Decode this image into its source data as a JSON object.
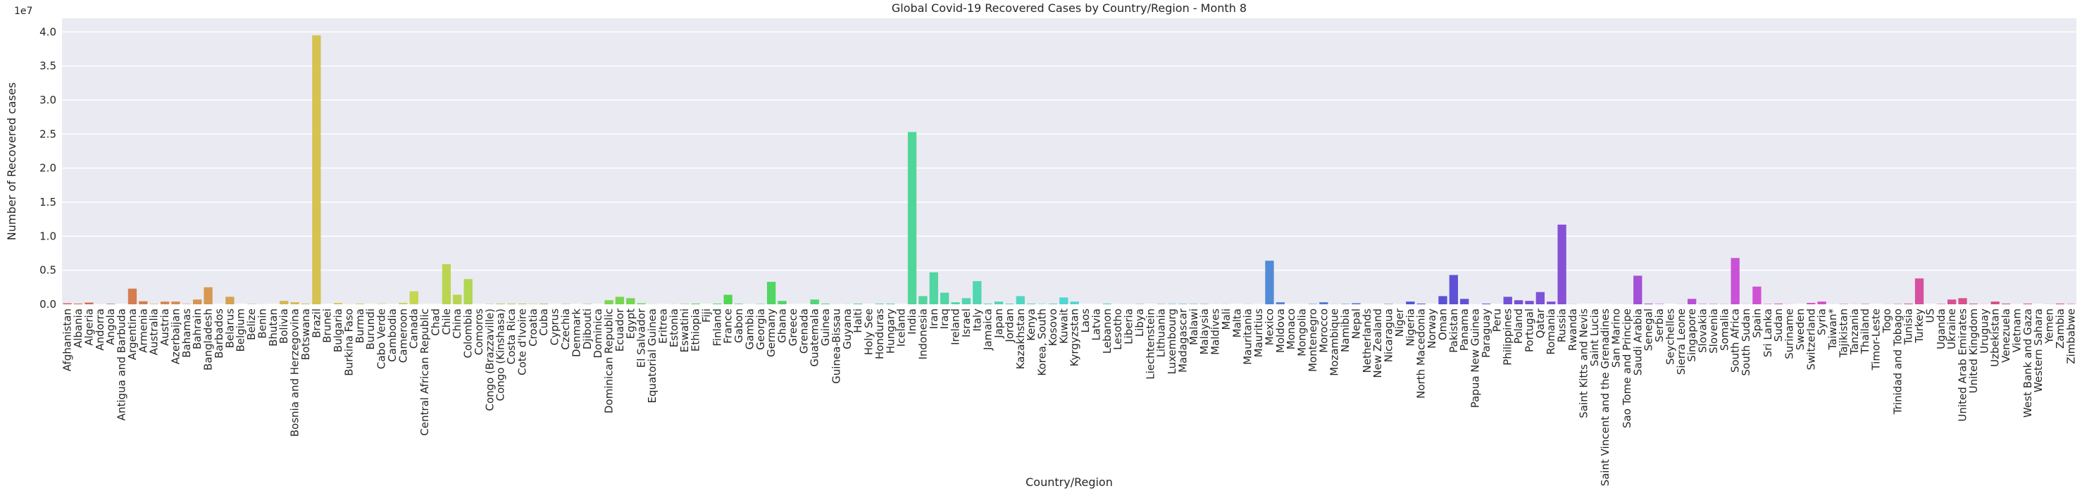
{
  "chart_data": {
    "type": "bar",
    "title": "Global Covid-19 Recovered Cases by Country/Region - Month 8",
    "x_label": "Country/Region",
    "y_label": "Number of Recovered cases",
    "y_offset": "1e7",
    "palette": "husl",
    "grid": true,
    "ylim": [
      0,
      42000000
    ],
    "yticks": [
      {
        "value": 0,
        "label": "0.0"
      },
      {
        "value": 5000000,
        "label": "0.5"
      },
      {
        "value": 10000000,
        "label": "1.0"
      },
      {
        "value": 15000000,
        "label": "1.5"
      },
      {
        "value": 20000000,
        "label": "2.0"
      },
      {
        "value": 25000000,
        "label": "2.5"
      },
      {
        "value": 30000000,
        "label": "3.0"
      },
      {
        "value": 35000000,
        "label": "3.5"
      },
      {
        "value": 40000000,
        "label": "4.0"
      }
    ],
    "categories": [
      "Afghanistan",
      "Albania",
      "Algeria",
      "Andorra",
      "Angola",
      "Antigua and Barbuda",
      "Argentina",
      "Armenia",
      "Australia",
      "Austria",
      "Azerbaijan",
      "Bahamas",
      "Bahrain",
      "Bangladesh",
      "Barbados",
      "Belarus",
      "Belgium",
      "Belize",
      "Benin",
      "Bhutan",
      "Bolivia",
      "Bosnia and Herzegovina",
      "Botswana",
      "Brazil",
      "Brunei",
      "Bulgaria",
      "Burkina Faso",
      "Burma",
      "Burundi",
      "Cabo Verde",
      "Cambodia",
      "Cameroon",
      "Canada",
      "Central African Republic",
      "Chad",
      "Chile",
      "China",
      "Colombia",
      "Comoros",
      "Congo (Brazzaville)",
      "Congo (Kinshasa)",
      "Costa Rica",
      "Cote d'Ivoire",
      "Croatia",
      "Cuba",
      "Cyprus",
      "Czechia",
      "Denmark",
      "Djibouti",
      "Dominica",
      "Dominican Republic",
      "Ecuador",
      "Egypt",
      "El Salvador",
      "Equatorial Guinea",
      "Eritrea",
      "Estonia",
      "Eswatini",
      "Ethiopia",
      "Fiji",
      "Finland",
      "France",
      "Gabon",
      "Gambia",
      "Georgia",
      "Germany",
      "Ghana",
      "Greece",
      "Grenada",
      "Guatemala",
      "Guinea",
      "Guinea-Bissau",
      "Guyana",
      "Haiti",
      "Holy See",
      "Honduras",
      "Hungary",
      "Iceland",
      "India",
      "Indonesia",
      "Iran",
      "Iraq",
      "Ireland",
      "Israel",
      "Italy",
      "Jamaica",
      "Japan",
      "Jordan",
      "Kazakhstan",
      "Kenya",
      "Korea, South",
      "Kosovo",
      "Kuwait",
      "Kyrgyzstan",
      "Laos",
      "Latvia",
      "Lebanon",
      "Lesotho",
      "Liberia",
      "Libya",
      "Liechtenstein",
      "Lithuania",
      "Luxembourg",
      "Madagascar",
      "Malawi",
      "Malaysia",
      "Maldives",
      "Mali",
      "Malta",
      "Mauritania",
      "Mauritius",
      "Mexico",
      "Moldova",
      "Monaco",
      "Mongolia",
      "Montenegro",
      "Morocco",
      "Mozambique",
      "Namibia",
      "Nepal",
      "Netherlands",
      "New Zealand",
      "Nicaragua",
      "Niger",
      "Nigeria",
      "North Macedonia",
      "Norway",
      "Oman",
      "Pakistan",
      "Panama",
      "Papua New Guinea",
      "Paraguay",
      "Peru",
      "Philippines",
      "Poland",
      "Portugal",
      "Qatar",
      "Romania",
      "Russia",
      "Rwanda",
      "Saint Kitts and Nevis",
      "Saint Lucia",
      "Saint Vincent and the Grenadines",
      "San Marino",
      "Sao Tome and Principe",
      "Saudi Arabia",
      "Senegal",
      "Serbia",
      "Seychelles",
      "Sierra Leone",
      "Singapore",
      "Slovakia",
      "Slovenia",
      "Somalia",
      "South Africa",
      "South Sudan",
      "Spain",
      "Sri Lanka",
      "Sudan",
      "Suriname",
      "Sweden",
      "Switzerland",
      "Syria",
      "Taiwan*",
      "Tajikistan",
      "Tanzania",
      "Thailand",
      "Timor-Leste",
      "Togo",
      "Trinidad and Tobago",
      "Tunisia",
      "Turkey",
      "US",
      "Uganda",
      "Ukraine",
      "United Arab Emirates",
      "United Kingdom",
      "Uruguay",
      "Uzbekistan",
      "Venezuela",
      "Vietnam",
      "West Bank and Gaza",
      "Western Sahara",
      "Yemen",
      "Zambia",
      "Zimbabwe"
    ],
    "values": [
      150000,
      100000,
      250000,
      10000,
      80000,
      1000,
      2300000,
      450000,
      50000,
      400000,
      400000,
      50000,
      700000,
      2500000,
      5000,
      1100000,
      0,
      50000,
      20000,
      5000,
      500000,
      300000,
      100000,
      39500000,
      1000,
      200000,
      30000,
      100000,
      5000,
      60000,
      5000,
      200000,
      1900000,
      10000,
      10000,
      5900000,
      1400000,
      3700000,
      5000,
      50000,
      100000,
      100000,
      100000,
      50000,
      100000,
      10000,
      50000,
      0,
      60000,
      1000,
      600000,
      1100000,
      900000,
      150000,
      20000,
      5000,
      20000,
      50000,
      100000,
      1000,
      100000,
      1400000,
      80000,
      10000,
      50000,
      3300000,
      500000,
      10000,
      1000,
      700000,
      100000,
      20000,
      20000,
      100000,
      0,
      100000,
      100000,
      5000,
      25300000,
      1200000,
      4700000,
      1700000,
      300000,
      900000,
      3400000,
      100000,
      400000,
      100000,
      1200000,
      100000,
      50000,
      100000,
      1000000,
      400000,
      1000,
      10000,
      100000,
      10000,
      20000,
      50000,
      1000,
      50000,
      50000,
      60000,
      50000,
      50000,
      10000,
      20000,
      5000,
      20000,
      5000,
      6400000,
      300000,
      1000,
      5000,
      50000,
      300000,
      20000,
      50000,
      150000,
      0,
      5000,
      50000,
      10000,
      400000,
      100000,
      0,
      1200000,
      4300000,
      800000,
      10000,
      100000,
      0,
      1100000,
      600000,
      500000,
      1800000,
      400000,
      11700000,
      20000,
      500,
      500,
      1000,
      10000,
      10000,
      4200000,
      100000,
      50000,
      1000,
      20000,
      800000,
      50000,
      50000,
      30000,
      6800000,
      20000,
      2600000,
      50000,
      100000,
      20000,
      0,
      200000,
      400000,
      10000,
      50000,
      20000,
      50000,
      1000,
      20000,
      50000,
      100000,
      3800000,
      0,
      50000,
      700000,
      900000,
      100000,
      20000,
      400000,
      100000,
      10000,
      100000,
      500,
      20000,
      100000,
      50000
    ]
  }
}
